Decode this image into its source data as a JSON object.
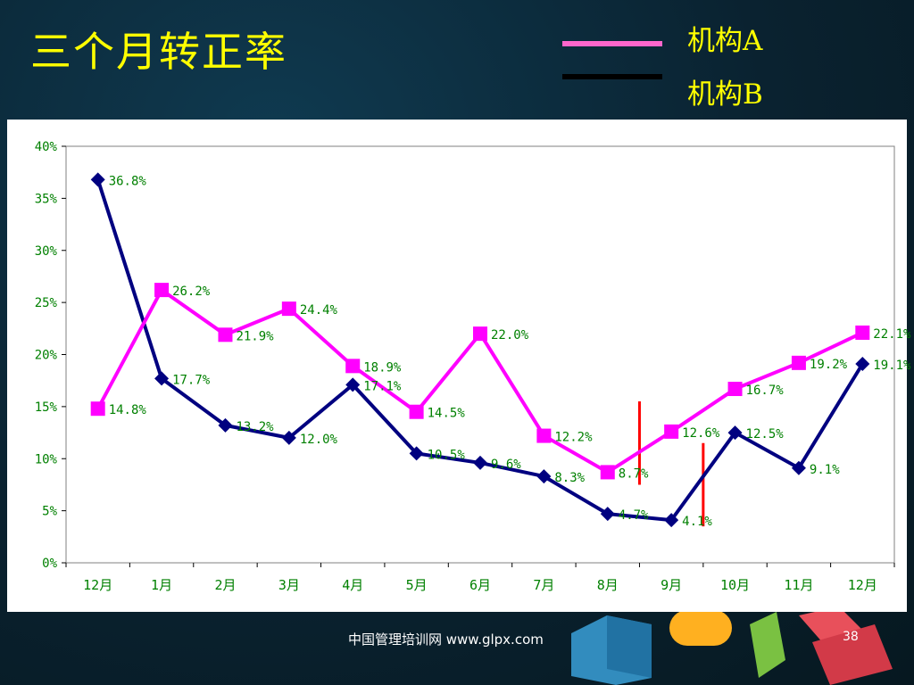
{
  "slide": {
    "title": "三个月转正率",
    "footer": "中国管理培训网  www.glpx.com",
    "page_number": "38"
  },
  "legend": [
    {
      "label": "机构A",
      "color": "#ff66cc"
    },
    {
      "label": "机构B",
      "color": "#000000"
    }
  ],
  "chart_data": {
    "type": "line",
    "categories": [
      "12月",
      "1月",
      "2月",
      "3月",
      "4月",
      "5月",
      "6月",
      "7月",
      "8月",
      "9月",
      "10月",
      "11月",
      "12月"
    ],
    "series": [
      {
        "name": "机构A",
        "color": "#ff00ff",
        "marker": "square",
        "values": [
          14.8,
          26.2,
          21.9,
          24.4,
          18.9,
          14.5,
          22.0,
          12.2,
          8.7,
          12.6,
          16.7,
          19.2,
          22.1
        ],
        "labels": [
          "14.8%",
          "26.2%",
          "21.9%",
          "24.4%",
          "18.9%",
          "14.5%",
          "22.0%",
          "12.2%",
          "8.7%",
          "12.6%",
          "16.7%",
          "19.2%",
          "22.1%"
        ]
      },
      {
        "name": "机构B",
        "color": "#000080",
        "marker": "diamond",
        "values": [
          36.8,
          17.7,
          13.2,
          12.0,
          17.1,
          10.5,
          9.6,
          8.3,
          4.7,
          4.1,
          12.5,
          9.1,
          19.1
        ],
        "labels": [
          "36.8%",
          "17.7%",
          "13.2%",
          "12.0%",
          "17.1%",
          "10.5%",
          "9.6%",
          "8.3%",
          "4.7%",
          "4.1%",
          "12.5%",
          "9.1%",
          "19.1%"
        ]
      }
    ],
    "ylim": [
      0,
      40
    ],
    "yticks": [
      "0%",
      "5%",
      "10%",
      "15%",
      "20%",
      "25%",
      "30%",
      "35%",
      "40%"
    ],
    "label_color": "#008000",
    "markers_vertical": [
      {
        "between": [
          "8月",
          "9月"
        ],
        "y_range": [
          7.5,
          15.5
        ],
        "color": "#ff0000"
      },
      {
        "between": [
          "9月",
          "10月"
        ],
        "y_range": [
          3.5,
          11.5
        ],
        "color": "#ff0000"
      }
    ],
    "grid": false
  }
}
